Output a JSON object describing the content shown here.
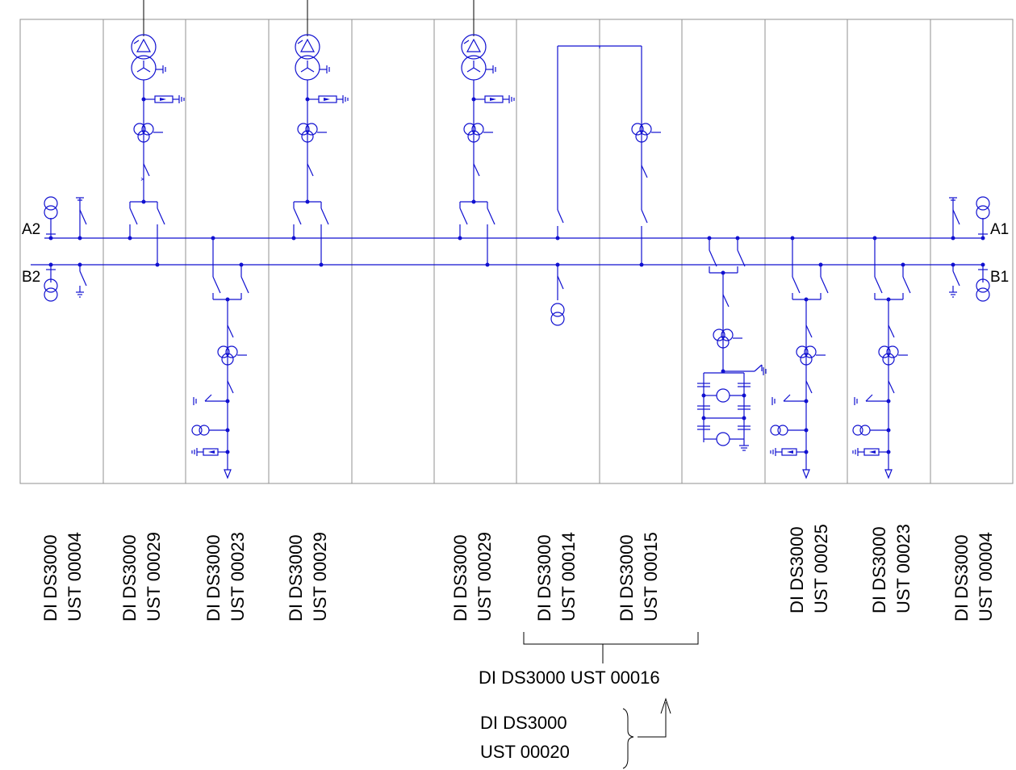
{
  "busbars": {
    "a_left": "A2",
    "b_left": "B2",
    "a_right": "A1",
    "b_right": "B1"
  },
  "bays": [
    {
      "line1": "DI DS3000",
      "line2": "UST 00004"
    },
    {
      "line1": "DI DS3000",
      "line2": "UST 00029"
    },
    {
      "line1": "DI DS3000",
      "line2": "UST 00023"
    },
    {
      "line1": "DI DS3000",
      "line2": "UST 00029"
    },
    {
      "line1": "DI DS3000",
      "line2": "UST 00029"
    },
    {
      "line1": "DI DS3000",
      "line2": "UST 00014"
    },
    {
      "line1": "DI DS3000",
      "line2": "UST 00015"
    },
    {
      "line1": "DI DS3000",
      "line2": "UST 00025"
    },
    {
      "line1": "DI DS3000",
      "line2": "UST 00023"
    },
    {
      "line1": "DI DS3000",
      "line2": "UST 00004"
    }
  ],
  "group_label": "DI DS3000 UST 00016",
  "ref_label": {
    "line1": "DI DS3000",
    "line2": "UST 00020"
  },
  "colors": {
    "conductor": "#1010d0",
    "frame": "#909090",
    "text": "#000000"
  }
}
